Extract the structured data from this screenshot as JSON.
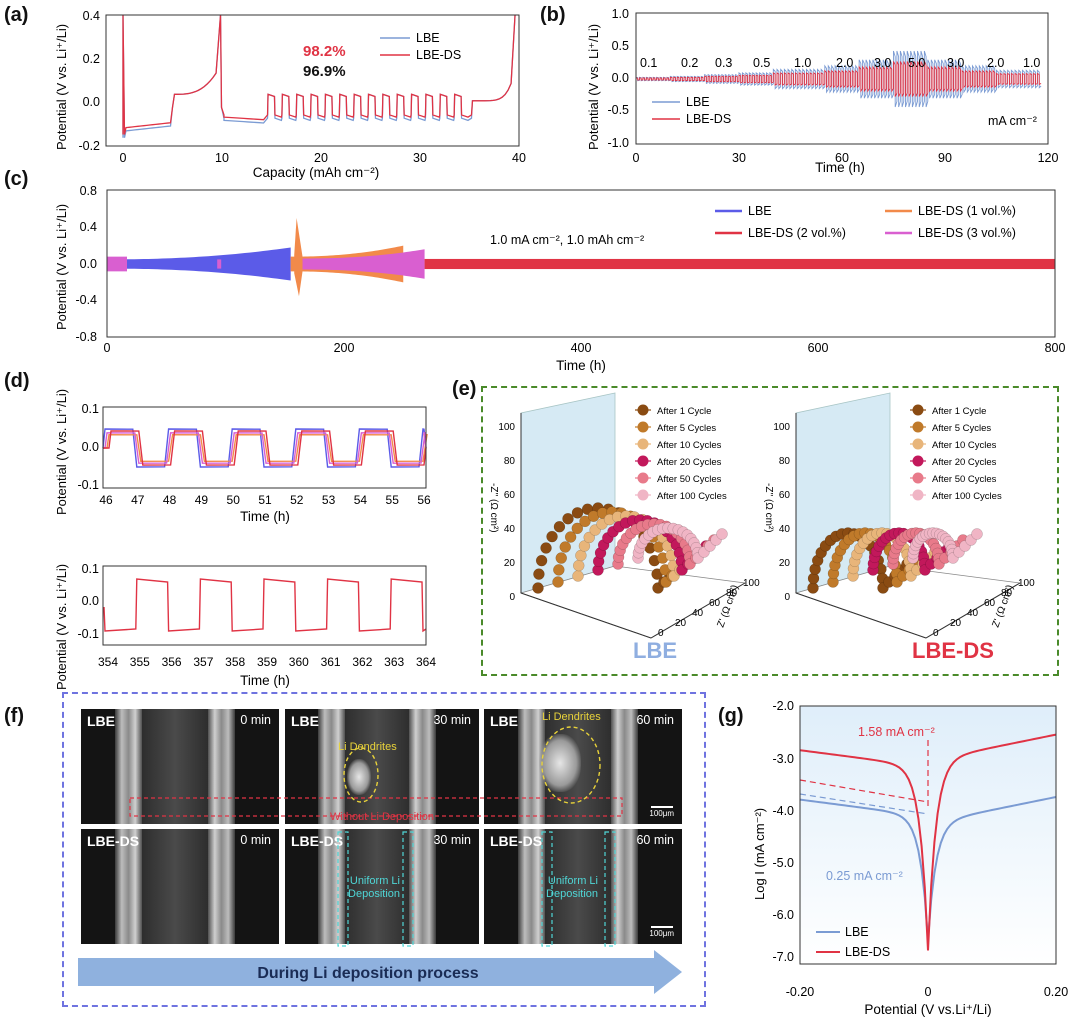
{
  "labels": {
    "a": "(a)",
    "b": "(b)",
    "c": "(c)",
    "d": "(d)",
    "e": "(e)",
    "f": "(f)",
    "g": "(g)"
  },
  "colors": {
    "lbe": "#7b9bd3",
    "lbe_ds": "#e03344",
    "lbe_c": "#5b5be8",
    "ds1": "#f28a4a",
    "ds3": "#d95fd0",
    "frame_e": "#4a8a2a",
    "frame_f": "#6f73e0",
    "arrow": "#8fb1de"
  },
  "panel_a": {
    "ylabel": "Potential (V vs. Li⁺/Li)",
    "xlabel": "Capacity (mAh cm⁻²)",
    "yticks": [
      "0.4",
      "0.2",
      "0.0",
      "-0.2"
    ],
    "xticks": [
      "0",
      "10",
      "20",
      "30",
      "40"
    ],
    "legend": [
      "LBE",
      "LBE-DS"
    ],
    "ce_ds": "98.2%",
    "ce_lbe": "96.9%"
  },
  "panel_b": {
    "ylabel": "Potential (V vs. Li⁺/Li)",
    "xlabel": "Time (h)",
    "yticks": [
      "1.0",
      "0.5",
      "0.0",
      "-0.5",
      "-1.0"
    ],
    "xticks": [
      "0",
      "30",
      "60",
      "90",
      "120"
    ],
    "rates": [
      "0.1",
      "0.2",
      "0.3",
      "0.5",
      "1.0",
      "2.0",
      "3.0",
      "5.0",
      "3.0",
      "2.0",
      "1.0"
    ],
    "legend": [
      "LBE",
      "LBE-DS"
    ],
    "unit": "mA cm⁻²"
  },
  "panel_c": {
    "ylabel": "Potential (V vs. Li⁺/Li)",
    "xlabel": "Time (h)",
    "yticks": [
      "0.8",
      "0.4",
      "0.0",
      "-0.4",
      "-0.8"
    ],
    "xticks": [
      "0",
      "200",
      "400",
      "600",
      "800"
    ],
    "legend": [
      "LBE",
      "LBE-DS (2 vol.%)",
      "LBE-DS (1 vol.%)",
      "LBE-DS (3 vol.%)"
    ],
    "condition": "1.0 mA cm⁻²,  1.0 mAh cm⁻²"
  },
  "panel_d": {
    "ylabel": "Potential (V vs. Li⁺/Li)",
    "xlabel": "Time (h)",
    "top_yticks": [
      "0.1",
      "0.0",
      "-0.1"
    ],
    "top_xticks": [
      "46",
      "47",
      "48",
      "49",
      "50",
      "51",
      "52",
      "53",
      "54",
      "55",
      "56"
    ],
    "bot_yticks": [
      "0.1",
      "0.0",
      "-0.1"
    ],
    "bot_xticks": [
      "354",
      "355",
      "356",
      "357",
      "358",
      "359",
      "360",
      "361",
      "362",
      "363",
      "364"
    ]
  },
  "panel_e": {
    "legend": [
      "After  1 Cycle",
      "After 5 Cycles",
      "After 10 Cycles",
      "After 20 Cycles",
      "After 50 Cycles",
      "After 100 Cycles"
    ],
    "legend_colors": [
      "#8a4b12",
      "#c07a2a",
      "#e8b57a",
      "#c2185b",
      "#e87a8a",
      "#f0b5c5"
    ],
    "zlabel": "-Z'' (Ω cm²)",
    "xlabel": "Z' (Ω cm²)",
    "zticks": [
      "100",
      "80",
      "60",
      "40",
      "20",
      "0"
    ],
    "xticks": [
      "0",
      "20",
      "40",
      "60",
      "80",
      "100"
    ],
    "name_lbe": "LBE",
    "name_ds": "LBE-DS"
  },
  "panel_f": {
    "tiles": [
      {
        "label": "LBE",
        "time": "0 min"
      },
      {
        "label": "LBE",
        "time": "30 min"
      },
      {
        "label": "LBE",
        "time": "60 min"
      },
      {
        "label": "LBE-DS",
        "time": "0 min"
      },
      {
        "label": "LBE-DS",
        "time": "30 min"
      },
      {
        "label": "LBE-DS",
        "time": "60 min"
      }
    ],
    "dendrites": "Li Dendrites",
    "without": "Without Li Deposition",
    "uniform": "Uniform Li\nDeposition",
    "scale": "100μm",
    "arrow_text": "During Li deposition process"
  },
  "panel_g": {
    "ylabel": "Log I (mA cm⁻²)",
    "xlabel": "Potential (V vs.Li⁺/Li)",
    "yticks": [
      "-2.0",
      "-3.0",
      "-4.0",
      "-5.0",
      "-6.0",
      "-7.0"
    ],
    "xticks": [
      "-0.20",
      "0",
      "0.20"
    ],
    "i_ds": "1.58 mA cm⁻²",
    "i_lbe": "0.25 mA cm⁻²",
    "legend": [
      "LBE",
      "LBE-DS"
    ]
  }
}
